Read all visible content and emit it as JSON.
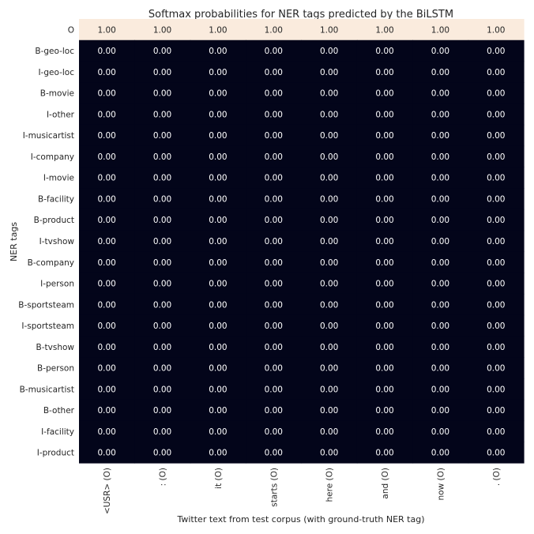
{
  "chart_data": {
    "type": "heatmap",
    "title": "Softmax probabilities for NER tags predicted by the BiLSTM",
    "xlabel": "Twitter text from test corpus (with ground-truth NER tag)",
    "ylabel": "NER tags",
    "x_categories": [
      "<USR> (O)",
      ": (O)",
      "it (O)",
      "starts (O)",
      "here (O)",
      "and (O)",
      "now (O)",
      ". (O)"
    ],
    "y_categories": [
      "O",
      "B-geo-loc",
      "I-geo-loc",
      "B-movie",
      "I-other",
      "I-musicartist",
      "I-company",
      "I-movie",
      "B-facility",
      "B-product",
      "I-tvshow",
      "B-company",
      "I-person",
      "B-sportsteam",
      "I-sportsteam",
      "B-tvshow",
      "B-person",
      "B-musicartist",
      "B-other",
      "I-facility",
      "I-product"
    ],
    "values": [
      [
        1.0,
        1.0,
        1.0,
        1.0,
        1.0,
        1.0,
        1.0,
        1.0
      ],
      [
        0.0,
        0.0,
        0.0,
        0.0,
        0.0,
        0.0,
        0.0,
        0.0
      ],
      [
        0.0,
        0.0,
        0.0,
        0.0,
        0.0,
        0.0,
        0.0,
        0.0
      ],
      [
        0.0,
        0.0,
        0.0,
        0.0,
        0.0,
        0.0,
        0.0,
        0.0
      ],
      [
        0.0,
        0.0,
        0.0,
        0.0,
        0.0,
        0.0,
        0.0,
        0.0
      ],
      [
        0.0,
        0.0,
        0.0,
        0.0,
        0.0,
        0.0,
        0.0,
        0.0
      ],
      [
        0.0,
        0.0,
        0.0,
        0.0,
        0.0,
        0.0,
        0.0,
        0.0
      ],
      [
        0.0,
        0.0,
        0.0,
        0.0,
        0.0,
        0.0,
        0.0,
        0.0
      ],
      [
        0.0,
        0.0,
        0.0,
        0.0,
        0.0,
        0.0,
        0.0,
        0.0
      ],
      [
        0.0,
        0.0,
        0.0,
        0.0,
        0.0,
        0.0,
        0.0,
        0.0
      ],
      [
        0.0,
        0.0,
        0.0,
        0.0,
        0.0,
        0.0,
        0.0,
        0.0
      ],
      [
        0.0,
        0.0,
        0.0,
        0.0,
        0.0,
        0.0,
        0.0,
        0.0
      ],
      [
        0.0,
        0.0,
        0.0,
        0.0,
        0.0,
        0.0,
        0.0,
        0.0
      ],
      [
        0.0,
        0.0,
        0.0,
        0.0,
        0.0,
        0.0,
        0.0,
        0.0
      ],
      [
        0.0,
        0.0,
        0.0,
        0.0,
        0.0,
        0.0,
        0.0,
        0.0
      ],
      [
        0.0,
        0.0,
        0.0,
        0.0,
        0.0,
        0.0,
        0.0,
        0.0
      ],
      [
        0.0,
        0.0,
        0.0,
        0.0,
        0.0,
        0.0,
        0.0,
        0.0
      ],
      [
        0.0,
        0.0,
        0.0,
        0.0,
        0.0,
        0.0,
        0.0,
        0.0
      ],
      [
        0.0,
        0.0,
        0.0,
        0.0,
        0.0,
        0.0,
        0.0,
        0.0
      ],
      [
        0.0,
        0.0,
        0.0,
        0.0,
        0.0,
        0.0,
        0.0,
        0.0
      ],
      [
        0.0,
        0.0,
        0.0,
        0.0,
        0.0,
        0.0,
        0.0,
        0.0
      ]
    ],
    "value_format": "0.00",
    "vmin": 0,
    "vmax": 1,
    "colors": {
      "low": "#03051a",
      "high": "#faebdd",
      "text_on_low": "#ffffff",
      "text_on_high": "#262626",
      "axis_text": "#262626"
    }
  }
}
